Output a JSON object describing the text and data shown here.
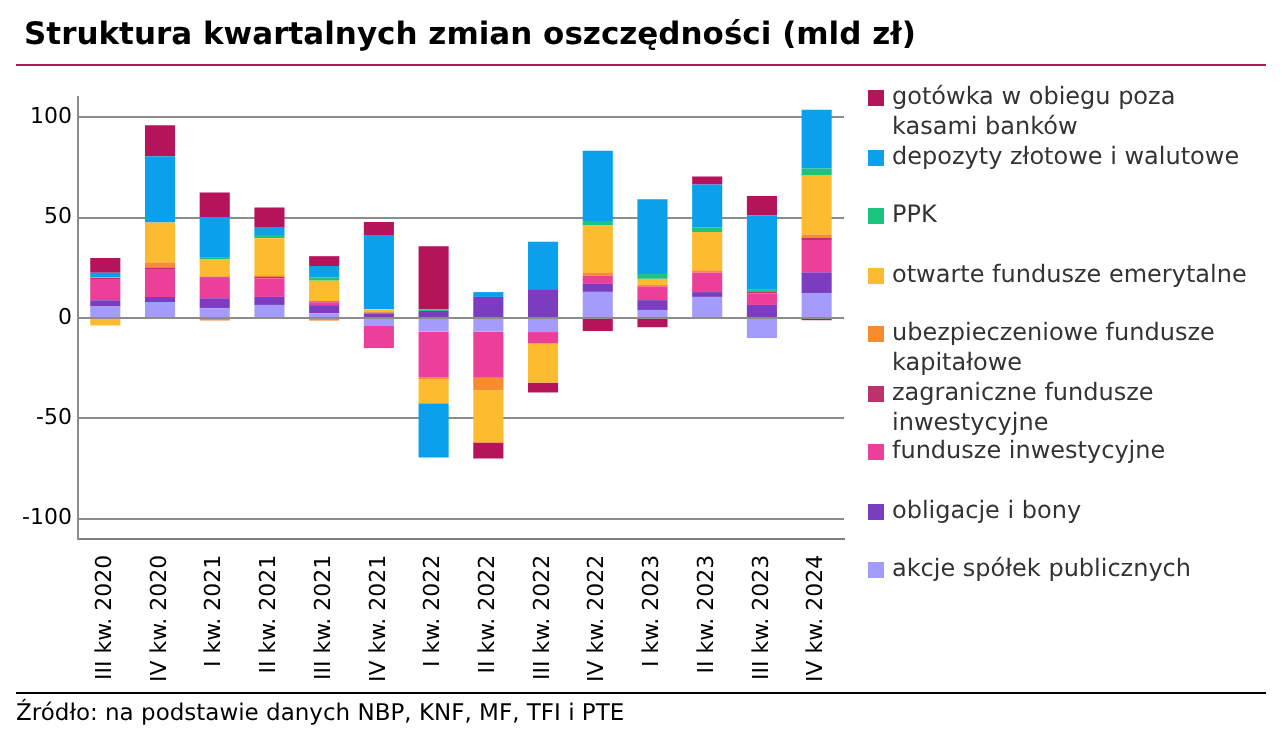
{
  "chart_data": {
    "type": "bar",
    "title": "Struktura kwartalnych zmian oszczędności (mld zł)",
    "categories": [
      "III kw. 2020",
      "IV kw. 2020",
      "I kw. 2021",
      "II kw. 2021",
      "III kw. 2021",
      "IV kw. 2021",
      "I kw. 2022",
      "II kw. 2022",
      "III kw. 2022",
      "IV kw. 2022",
      "I kw. 2023",
      "II kw. 2023",
      "III kw. 2023",
      "IV kw. 2024"
    ],
    "stacked": true,
    "series": [
      {
        "name": "akcje spółek publicznych",
        "color": "#a39cfb",
        "values": [
          5.7,
          8,
          4.9,
          6.5,
          2.4,
          -4,
          -6.8,
          -6.8,
          -7,
          13,
          4,
          10.5,
          -10,
          12.2
        ]
      },
      {
        "name": "obligacje i bony",
        "color": "#7b3cc0",
        "values": [
          3.2,
          2.4,
          4.9,
          4,
          4,
          2.2,
          3.5,
          10.5,
          14,
          4,
          4.9,
          2.4,
          6.5,
          10.5
        ]
      },
      {
        "name": "fundusze inwestycyjne",
        "color": "#ec3f9a",
        "values": [
          10.5,
          14,
          10.3,
          9.2,
          1.4,
          -11,
          -22.7,
          -23,
          -5.7,
          4,
          6.8,
          9.7,
          5.7,
          16.2
        ]
      },
      {
        "name": "zagraniczne fundusze inwestycyjne",
        "color": "#c0306a",
        "values": [
          0.5,
          0.8,
          0.5,
          0.8,
          0.5,
          0.5,
          null,
          null,
          null,
          null,
          null,
          null,
          0.8,
          1.1
        ]
      },
      {
        "name": "ubezpieczeniowe fundusze kapitałowe",
        "color": "#f88a30",
        "values": [
          0.3,
          2.4,
          -1.3,
          0.8,
          -1.3,
          null,
          -1,
          -6.2,
          null,
          1.6,
          0.8,
          1.1,
          null,
          1.6
        ]
      },
      {
        "name": "otwarte fundusze emerytalne",
        "color": "#fdbb30",
        "values": [
          -3.8,
          20,
          8.6,
          18.4,
          10.3,
          1.6,
          -12,
          -26,
          -19.5,
          23.5,
          3,
          19.2,
          null,
          29.7
        ]
      },
      {
        "name": "PPK",
        "color": "#18c47e",
        "values": [
          null,
          null,
          0.8,
          1.6,
          1.6,
          null,
          0.8,
          null,
          null,
          2.2,
          2.4,
          2.2,
          1.1,
          3.2
        ]
      },
      {
        "name": "depozyty złotowe i walutowe",
        "color": "#0aa0ec",
        "values": [
          2.4,
          33,
          20.3,
          4,
          5.7,
          37,
          -27,
          2.4,
          24,
          35,
          37.3,
          21.4,
          37,
          29.2
        ]
      },
      {
        "name": "gotówka w obiegu poza kasami banków",
        "color": "#b5135a",
        "values": [
          7.3,
          15.4,
          12.2,
          9.7,
          4.9,
          6.5,
          31.4,
          -8,
          -4.9,
          -6.5,
          -4.6,
          4,
          9.7,
          -1.1
        ]
      }
    ],
    "ylim": [
      -110,
      110
    ],
    "yticks": [
      -100,
      -50,
      0,
      50,
      100
    ],
    "grid": "y",
    "legend": "right",
    "annotations": [
      "Źródło: na podstawie danych NBP, KNF, MF, TFI i PTE"
    ]
  }
}
